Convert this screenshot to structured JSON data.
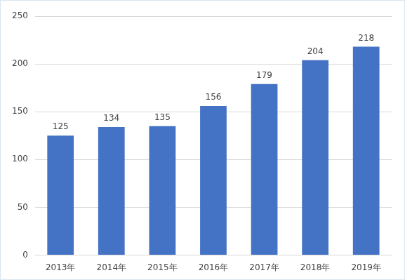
{
  "chart_data": {
    "type": "bar",
    "categories": [
      "2013年",
      "2014年",
      "2015年",
      "2016年",
      "2017年",
      "2018年",
      "2019年"
    ],
    "values": [
      125,
      134,
      135,
      156,
      179,
      204,
      218
    ],
    "color": "#4472c4",
    "ylim": [
      0,
      250
    ],
    "yticks": [
      0,
      50,
      100,
      150,
      200,
      250
    ],
    "grid": true,
    "data_labels": true
  }
}
